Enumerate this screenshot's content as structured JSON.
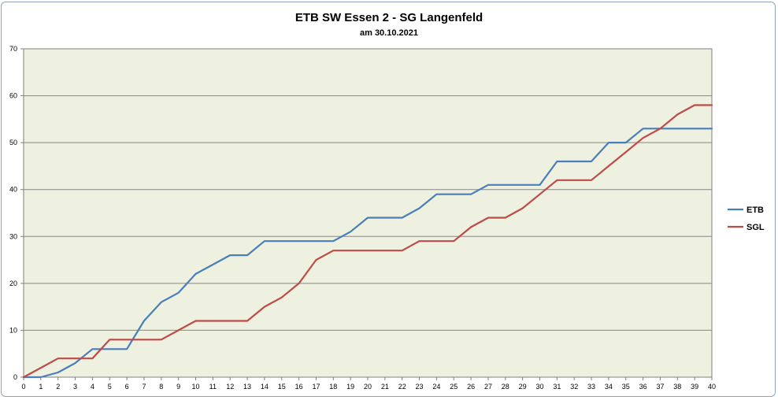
{
  "chart_data": {
    "type": "line",
    "title": "ETB SW Essen 2 - SG Langenfeld",
    "subtitle": "am 30.10.2021",
    "xlabel": "",
    "ylabel": "",
    "x": [
      0,
      1,
      2,
      3,
      4,
      5,
      6,
      7,
      8,
      9,
      10,
      11,
      12,
      13,
      14,
      15,
      16,
      17,
      18,
      19,
      20,
      21,
      22,
      23,
      24,
      25,
      26,
      27,
      28,
      29,
      30,
      31,
      32,
      33,
      34,
      35,
      36,
      37,
      38,
      39,
      40
    ],
    "xlim": [
      0,
      40
    ],
    "ylim": [
      0,
      70
    ],
    "yticks": [
      0,
      10,
      20,
      30,
      40,
      50,
      60,
      70
    ],
    "grid": true,
    "legend_position": "right",
    "plot_background": "#eef0e0",
    "series": [
      {
        "name": "ETB",
        "color": "#4a7ebb",
        "values": [
          0,
          0,
          1,
          3,
          6,
          6,
          6,
          12,
          16,
          18,
          22,
          24,
          26,
          26,
          29,
          29,
          29,
          29,
          29,
          31,
          34,
          34,
          34,
          36,
          39,
          39,
          39,
          41,
          41,
          41,
          41,
          46,
          46,
          46,
          50,
          50,
          53,
          53,
          53,
          53,
          53
        ]
      },
      {
        "name": "SGL",
        "color": "#be4b48",
        "values": [
          0,
          2,
          4,
          4,
          4,
          8,
          8,
          8,
          8,
          10,
          12,
          12,
          12,
          12,
          15,
          17,
          20,
          25,
          27,
          27,
          27,
          27,
          27,
          29,
          29,
          29,
          32,
          34,
          34,
          36,
          39,
          42,
          42,
          42,
          45,
          48,
          51,
          53,
          56,
          58,
          58
        ]
      }
    ]
  }
}
